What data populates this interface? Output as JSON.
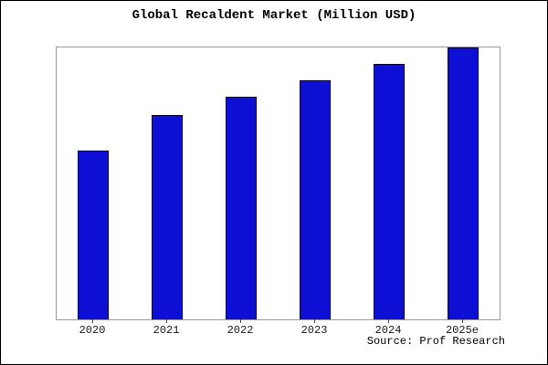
{
  "title": "Global Recaldent Market (Million USD)",
  "source": "Source: Prof Research",
  "colors": {
    "bar_fill": "#0d0fd4",
    "bar_border": "#01013a",
    "plot_border": "#9a9a9a",
    "background": "#ffffff"
  },
  "chart_data": {
    "type": "bar",
    "categories": [
      "2020",
      "2021",
      "2022",
      "2023",
      "2024",
      "2025e"
    ],
    "values": [
      62,
      75,
      82,
      88,
      94,
      100
    ],
    "title": "Global Recaldent Market (Million USD)",
    "xlabel": "",
    "ylabel": "",
    "ylim": [
      0,
      100
    ],
    "grid": false,
    "legend": false,
    "annotation": "Source: Prof Research"
  }
}
